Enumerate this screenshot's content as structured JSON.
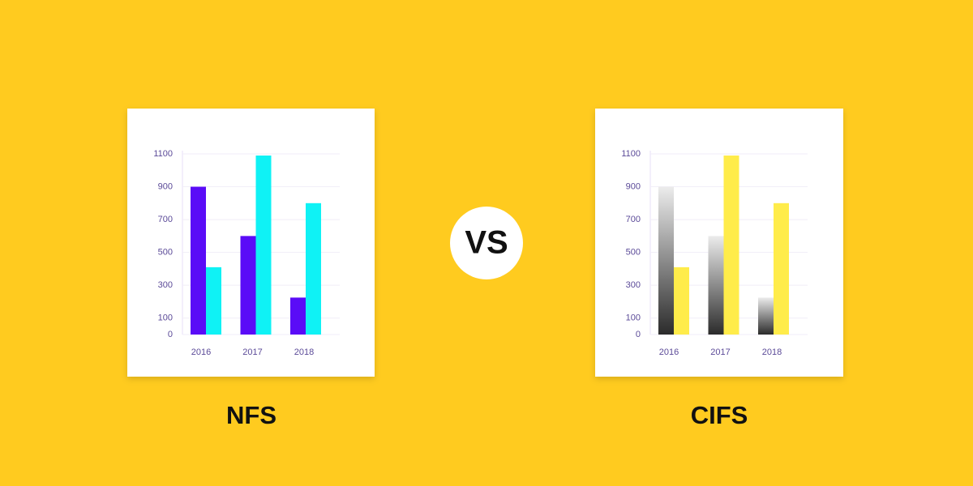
{
  "chart_data": [
    {
      "type": "bar",
      "title": "NFS",
      "categories": [
        "2016",
        "2017",
        "2018"
      ],
      "series": [
        {
          "color": "#5a0cf7",
          "values": [
            900,
            600,
            225
          ]
        },
        {
          "color": "#0ff2f5",
          "values": [
            410,
            1090,
            800
          ]
        }
      ],
      "ylim": [
        0,
        1100
      ],
      "yticks": [
        0,
        100,
        300,
        500,
        700,
        900,
        1100
      ],
      "grid": true
    },
    {
      "type": "bar",
      "title": "CIFS",
      "categories": [
        "2016",
        "2017",
        "2018"
      ],
      "series": [
        {
          "color": "#8a8a8a",
          "gradient": [
            "#2b2b2b",
            "#ececec"
          ],
          "values": [
            900,
            600,
            225
          ]
        },
        {
          "color": "#ffec4a",
          "values": [
            410,
            1090,
            800
          ]
        }
      ],
      "ylim": [
        0,
        1100
      ],
      "yticks": [
        0,
        100,
        300,
        500,
        700,
        900,
        1100
      ],
      "grid": true
    }
  ],
  "vs_label": "VS"
}
